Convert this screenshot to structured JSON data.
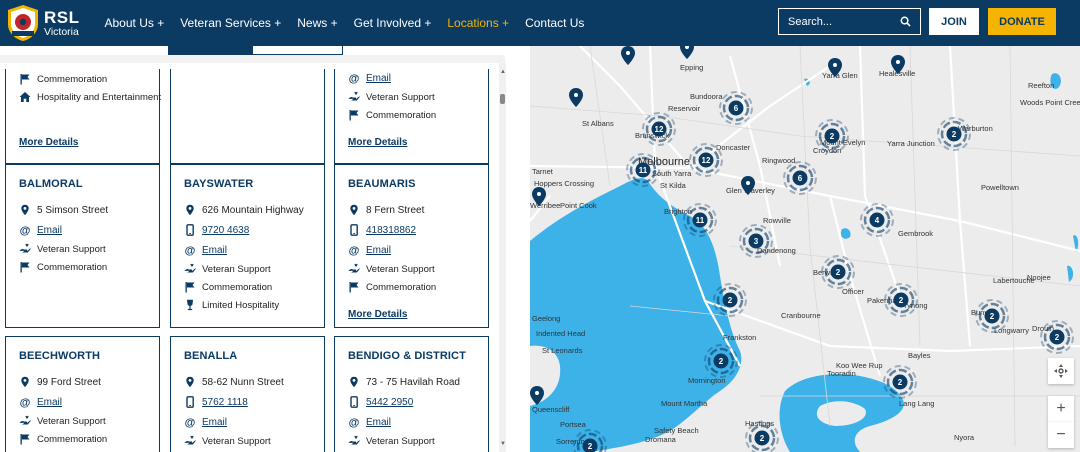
{
  "header": {
    "logo": {
      "title": "RSL",
      "subtitle": "Victoria"
    },
    "nav": [
      {
        "label": "About Us +"
      },
      {
        "label": "Veteran Services +"
      },
      {
        "label": "News +"
      },
      {
        "label": "Get Involved +"
      },
      {
        "label": "Locations +",
        "active": true
      },
      {
        "label": "Contact Us"
      }
    ],
    "search": {
      "placeholder": "Search..."
    },
    "join_label": "JOIN",
    "donate_label": "DONATE"
  },
  "colors": {
    "navy": "#0b3a63",
    "accent": "#f5b400",
    "water": "#3db2e8"
  },
  "locations": {
    "top_partial": [
      {
        "items": [
          {
            "icon": "flag-icon",
            "text": "Commemoration"
          },
          {
            "icon": "home-icon",
            "text": "Hospitality and Entertainment"
          }
        ],
        "more": "More Details"
      },
      {
        "items": [],
        "more": ""
      },
      {
        "items": [
          {
            "icon": "email-icon",
            "text": "Email",
            "link": true
          },
          {
            "icon": "support-icon",
            "text": "Veteran Support"
          },
          {
            "icon": "flag-icon",
            "text": "Commemoration"
          }
        ],
        "more": "More Details"
      }
    ],
    "row2": [
      {
        "name": "BALMORAL",
        "address": "5 Simson Street",
        "phone": "",
        "email": "Email",
        "services": [
          "Veteran Support",
          "Commemoration"
        ],
        "more": ""
      },
      {
        "name": "BAYSWATER",
        "address": "626 Mountain Highway",
        "phone": "9720 4638",
        "email": "Email",
        "services": [
          "Veteran Support",
          "Commemoration",
          "Limited Hospitality"
        ],
        "more": ""
      },
      {
        "name": "BEAUMARIS",
        "address": "8 Fern Street",
        "phone": "418318862",
        "email": "Email",
        "services": [
          "Veteran Support",
          "Commemoration"
        ],
        "more": "More Details"
      }
    ],
    "row3": [
      {
        "name": "BEECHWORTH",
        "address": "99 Ford Street",
        "phone": "",
        "email": "Email",
        "services": [
          "Veteran Support",
          "Commemoration"
        ]
      },
      {
        "name": "BENALLA",
        "address": "58-62 Nunn Street",
        "phone": "5762 1118",
        "email": "Email",
        "services": [
          "Veteran Support"
        ]
      },
      {
        "name": "BENDIGO & DISTRICT",
        "address": "73 - 75 Havilah Road",
        "phone": "5442 2950",
        "email": "Email",
        "services": [
          "Veteran Support"
        ]
      }
    ]
  },
  "map": {
    "places": [
      "Epping",
      "Yarra Glen",
      "Healesville",
      "Bundoora",
      "Reservoir",
      "St Albans",
      "Brunswick",
      "Doncaster",
      "Ringwood",
      "Croydon",
      "Mount Evelyn",
      "Yarra Junction",
      "Melbourne",
      "South Yarra",
      "St Kilda",
      "Glen Waverley",
      "Hoppers Crossing",
      "Werribee",
      "Tarnet",
      "Point Cook",
      "Brighton",
      "Rowville",
      "Dandenong",
      "Berwick",
      "Officer",
      "Pakenham",
      "Gembrook",
      "Powelltown",
      "Tynong",
      "Labertouche",
      "Cranbourne",
      "Frankston",
      "Drouin",
      "Bunyip",
      "Bayles",
      "Koo Wee Rup",
      "Tooradin",
      "Lang Lang",
      "Indented Head",
      "St Leonards",
      "Mornington",
      "Mount Martha",
      "Dromana",
      "Safety Beach",
      "Sorrento",
      "Portsea",
      "Hastings",
      "Nyora",
      "Longwarry",
      "Warburton",
      "Reefton",
      "Noojee",
      "Woods Point Creek",
      "Queenscliff",
      "Geelong"
    ],
    "clusters": [
      {
        "count": "6"
      },
      {
        "count": "12"
      },
      {
        "count": "12"
      },
      {
        "count": "2"
      },
      {
        "count": "2"
      },
      {
        "count": "11"
      },
      {
        "count": "6"
      },
      {
        "count": "11"
      },
      {
        "count": "4"
      },
      {
        "count": "3"
      },
      {
        "count": "2"
      },
      {
        "count": "2"
      },
      {
        "count": "2"
      },
      {
        "count": "2"
      },
      {
        "count": "2"
      },
      {
        "count": "2"
      },
      {
        "count": "2"
      },
      {
        "count": "2"
      },
      {
        "count": "2"
      }
    ]
  }
}
